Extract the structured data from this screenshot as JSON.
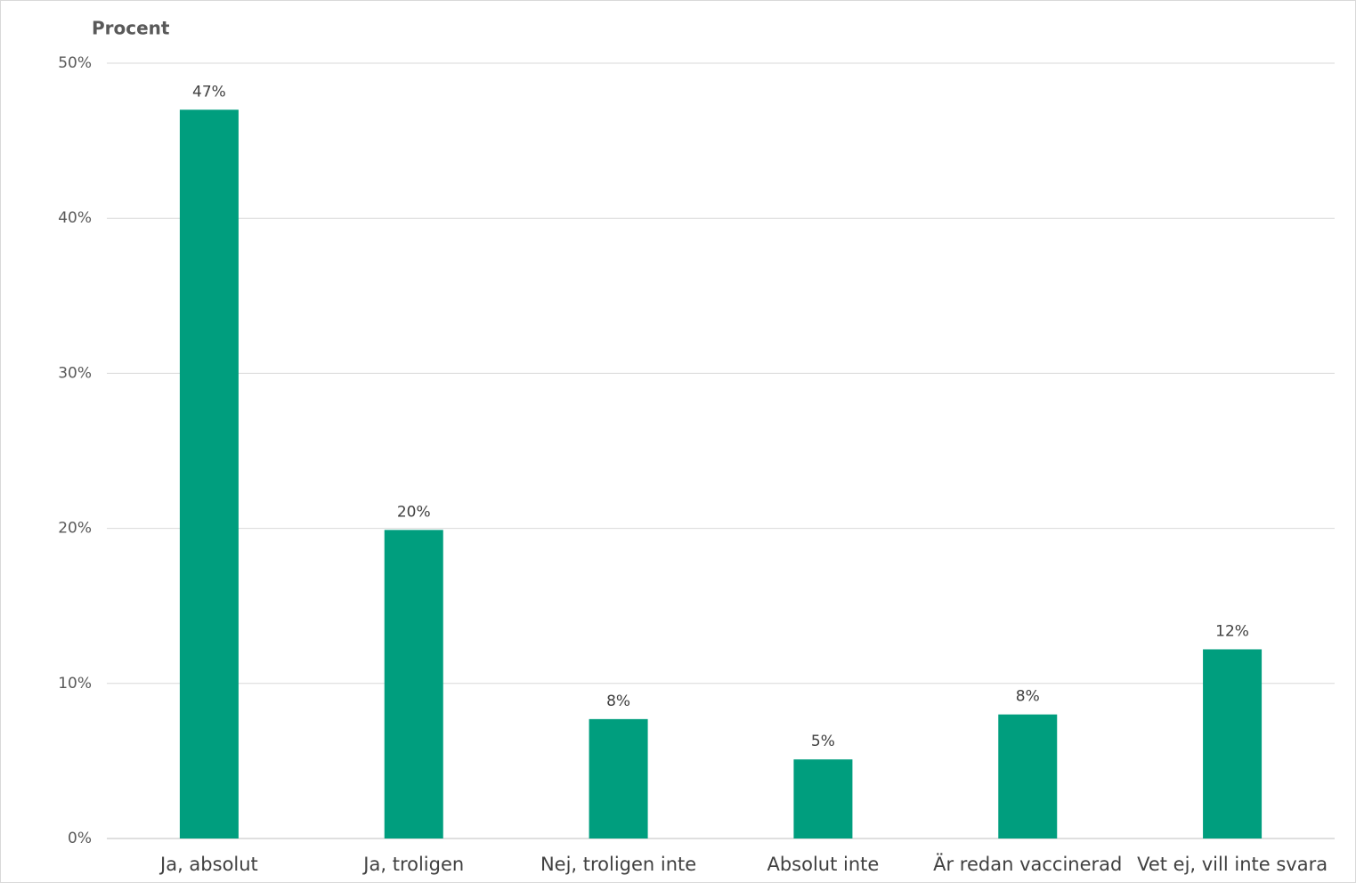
{
  "chart_data": {
    "type": "bar",
    "y_axis_label": "Procent",
    "categories": [
      "Ja, absolut",
      "Ja, troligen",
      "Nej, troligen inte",
      "Absolut inte",
      "Är redan vaccinerad",
      "Vet ej, vill inte svara"
    ],
    "values": [
      47,
      19.9,
      7.7,
      5.1,
      8.0,
      12.2
    ],
    "value_labels": [
      "47%",
      "20%",
      "8%",
      "5%",
      "8%",
      "12%"
    ],
    "color": "#009e7e",
    "ylim": [
      0,
      50
    ],
    "yticks": [
      {
        "value": 0,
        "label": "0%"
      },
      {
        "value": 10,
        "label": "10%"
      },
      {
        "value": 20,
        "label": "20%"
      },
      {
        "value": 30,
        "label": "30%"
      },
      {
        "value": 40,
        "label": "40%"
      },
      {
        "value": 50,
        "label": "50%"
      }
    ],
    "grid": true
  }
}
